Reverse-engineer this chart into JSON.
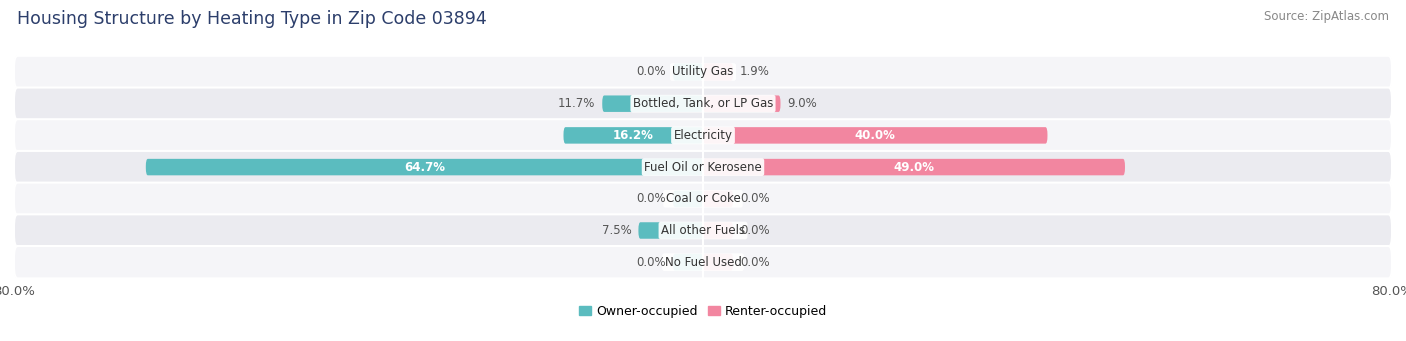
{
  "title": "Housing Structure by Heating Type in Zip Code 03894",
  "source": "Source: ZipAtlas.com",
  "categories": [
    "Utility Gas",
    "Bottled, Tank, or LP Gas",
    "Electricity",
    "Fuel Oil or Kerosene",
    "Coal or Coke",
    "All other Fuels",
    "No Fuel Used"
  ],
  "owner_values": [
    0.0,
    11.7,
    16.2,
    64.7,
    0.0,
    7.5,
    0.0
  ],
  "renter_values": [
    1.9,
    9.0,
    40.0,
    49.0,
    0.0,
    0.0,
    0.0
  ],
  "owner_color": "#5bbcbf",
  "renter_color": "#f286a0",
  "owner_label": "Owner-occupied",
  "renter_label": "Renter-occupied",
  "xlim": 80.0,
  "fig_bg": "#ffffff",
  "row_bg_odd": "#f5f5f8",
  "row_bg_even": "#ebebf0",
  "title_fontsize": 12.5,
  "source_fontsize": 8.5,
  "value_fontsize": 8.5,
  "cat_fontsize": 8.5,
  "axis_fontsize": 9.5,
  "bar_height": 0.52,
  "stub_min": 3.5
}
